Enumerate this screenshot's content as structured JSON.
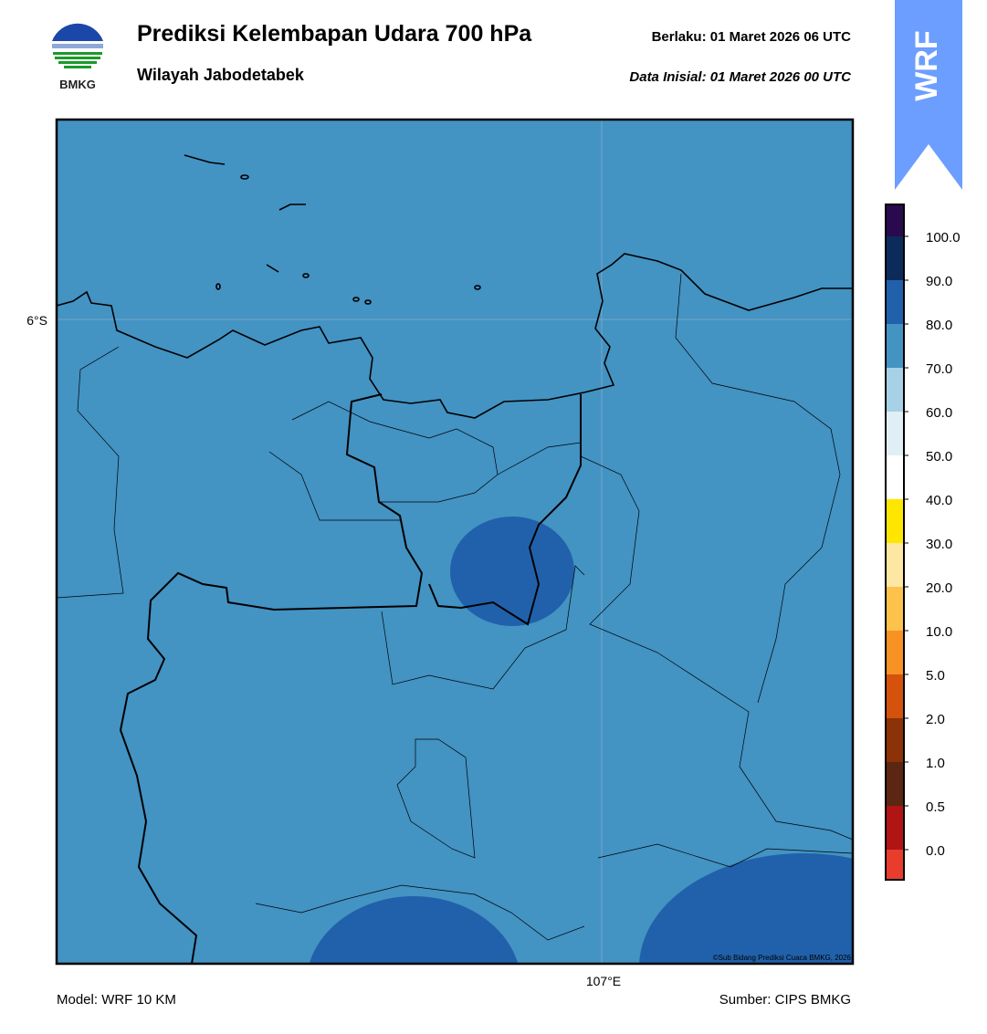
{
  "header": {
    "logo_text": "BMKG",
    "title": "Prediksi Kelembapan Udara 700 hPa",
    "subtitle": "Wilayah Jabodetabek",
    "valid_time": "Berlaku:  01 Maret 2026 06 UTC",
    "initial_time": "Data Inisial:  01 Maret 2026 00 UTC",
    "badge": "WRF"
  },
  "map": {
    "lat_label": "6°S",
    "lon_label": "107°E",
    "credit": "©Sub Bidang Prediksi Cuaca BMKG, 2026"
  },
  "colorbar": {
    "labels": [
      "100.0",
      "90.0",
      "80.0",
      "70.0",
      "60.0",
      "50.0",
      "40.0",
      "30.0",
      "20.0",
      "10.0",
      "5.0",
      "2.0",
      "1.0",
      "0.5",
      "0.0"
    ],
    "colors": [
      "#2a0a4e",
      "#0b2b5b",
      "#2161ab",
      "#4393c3",
      "#a6d1e6",
      "#e0eef6",
      "#ffffff",
      "#ffe600",
      "#fde7a3",
      "#fdc24c",
      "#f99224",
      "#d4520c",
      "#8b3206",
      "#5b2612",
      "#b01414",
      "#e83c2c"
    ]
  },
  "footer": {
    "model": "Model: WRF 10 KM",
    "source": "Sumber: CIPS BMKG"
  }
}
